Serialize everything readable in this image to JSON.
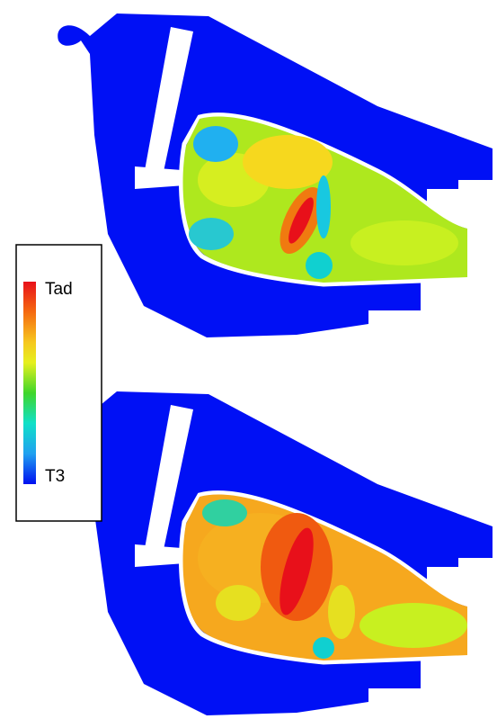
{
  "legend": {
    "max_label": "Tad",
    "min_label": "T3"
  }
}
